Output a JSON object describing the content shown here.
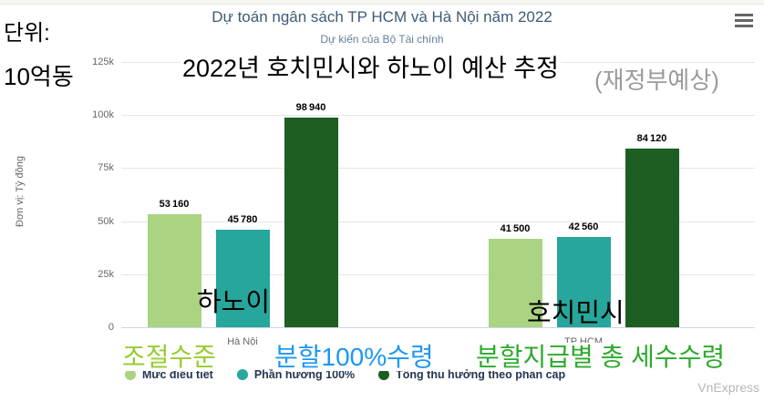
{
  "page": {
    "watermark": "VnExpress"
  },
  "chart_data": {
    "type": "bar",
    "title": "Dự toán ngân sách TP HCM và Hà Nội năm 2022",
    "subtitle": "Dự kiến của Bộ Tài chính",
    "categories": [
      "Hà Nội",
      "TP HCM"
    ],
    "series": [
      {
        "name": "Mức điều tiết",
        "color": "#aad382",
        "values": [
          53160,
          41500
        ]
      },
      {
        "name": "Phần hưởng 100%",
        "color": "#27a69b",
        "values": [
          45780,
          42560
        ]
      },
      {
        "name": "Tổng thu hưởng theo phân cấp",
        "color": "#1e5e22",
        "values": [
          98940,
          84120
        ]
      }
    ],
    "ylabel": "Đơn vị: Tỷ đồng",
    "ytick_labels": [
      "0",
      "25k",
      "50k",
      "75k",
      "100k",
      "125k"
    ],
    "ylim": [
      0,
      125000
    ],
    "grid": true,
    "legend_position": "bottom",
    "data_label_separator": "thin-space-thousands"
  },
  "overlays": {
    "unit_line1": "단위:",
    "unit_line2": "10억동",
    "title_ko": "2022년 호치민시와 하노이 예산 추정",
    "title_ko_suffix": "(재정부예상)",
    "group1_ko": "하노이",
    "group2_ko": "호치민시",
    "legend_ko": [
      {
        "label": "조절수준",
        "color": "#97cc33"
      },
      {
        "label": "분할100%수령",
        "color": "#1e97f3"
      },
      {
        "label": "분할지급별 총 세수수령",
        "color": "#2daa2e"
      }
    ]
  },
  "icons": {
    "menu": "hamburger-icon"
  },
  "colors": {
    "title": "#3d5a78",
    "subtitle": "#64809c",
    "gridline": "#e6e6e6",
    "axis_line": "#ccd6eb",
    "tick_text": "#666666",
    "legend_text": "#24364f",
    "watermark": "#b6b6be"
  }
}
